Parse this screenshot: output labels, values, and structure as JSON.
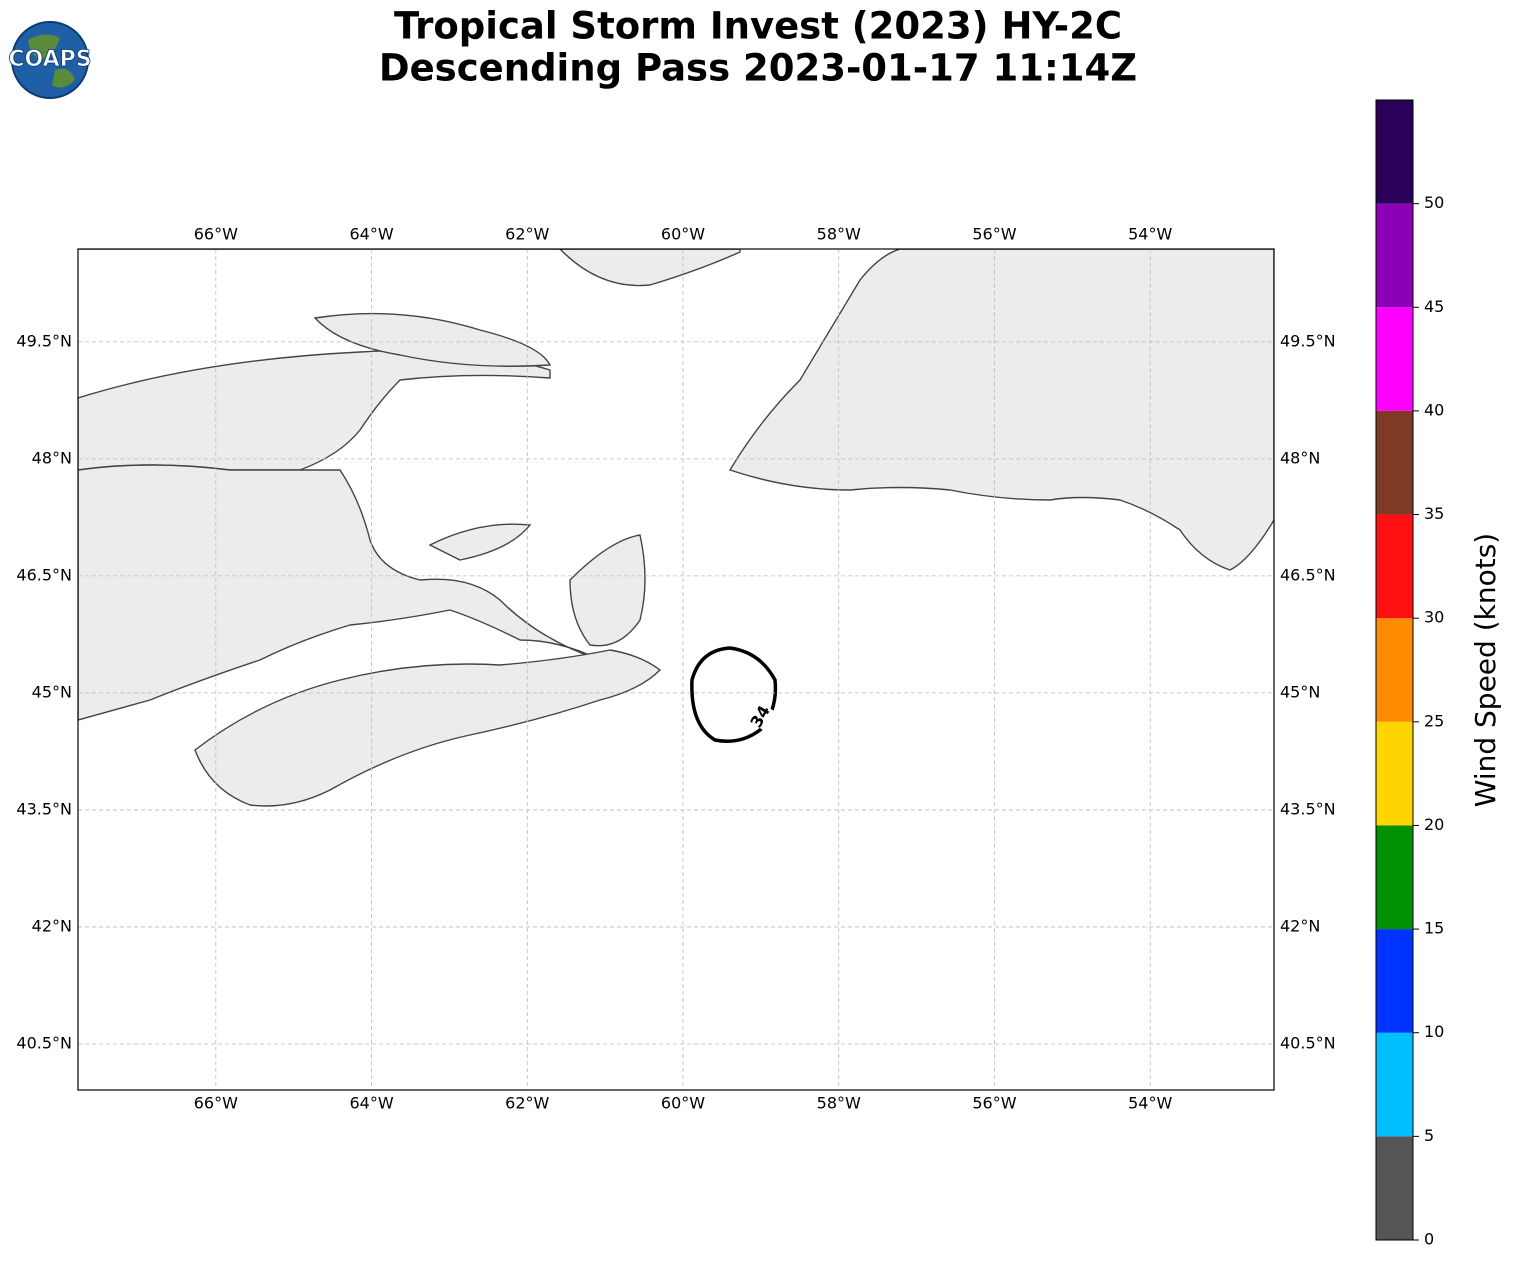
{
  "title": [
    "Tropical Storm Invest (2023) HY-2C",
    "Descending Pass 2023-01-17 11:14Z"
  ],
  "logo": "COAPS",
  "map": {
    "xlim": [
      -67.77,
      -52.41
    ],
    "ylim": [
      39.91,
      50.69
    ],
    "xticks": [
      {
        "value": -66,
        "label": "66°W"
      },
      {
        "value": -64,
        "label": "64°W"
      },
      {
        "value": -62,
        "label": "62°W"
      },
      {
        "value": -60,
        "label": "60°W"
      },
      {
        "value": -58,
        "label": "58°W"
      },
      {
        "value": -56,
        "label": "56°W"
      },
      {
        "value": -54,
        "label": "54°W"
      }
    ],
    "yticks": [
      {
        "value": 49.5,
        "label": "49.5°N"
      },
      {
        "value": 48,
        "label": "48°N"
      },
      {
        "value": 46.5,
        "label": "46.5°N"
      },
      {
        "value": 45,
        "label": "45°N"
      },
      {
        "value": 43.5,
        "label": "43.5°N"
      },
      {
        "value": 42,
        "label": "42°N"
      },
      {
        "value": 40.5,
        "label": "40.5°N"
      }
    ],
    "grid": true,
    "contour_label": "34"
  },
  "colorbar": {
    "label": "Wind Speed (knots)",
    "lim": [
      0,
      55
    ],
    "ticks": [
      0,
      5,
      10,
      15,
      20,
      25,
      30,
      35,
      40,
      45,
      50
    ],
    "colors": [
      "#555555",
      "#00bfff",
      "#0033ff",
      "#009100",
      "#ffd500",
      "#ff8c00",
      "#ff1010",
      "#7f3a26",
      "#ff00ff",
      "#8b00b5",
      "#2a0058"
    ]
  }
}
